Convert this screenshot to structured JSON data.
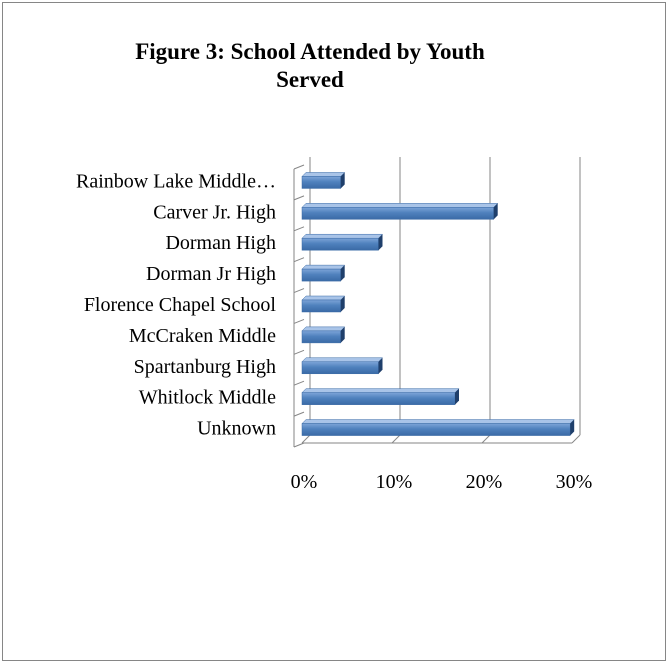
{
  "chart_data": {
    "type": "bar",
    "orientation": "horizontal",
    "style": "3d",
    "title": "Figure 3: School Attended by Youth Served",
    "categories": [
      "Rainbow Lake Middle…",
      "Carver Jr. High",
      "Dorman High",
      "Dorman Jr High",
      "Florence Chapel School",
      "McCraken Middle",
      "Spartanburg High",
      "Whitlock Middle",
      "Unknown"
    ],
    "values": [
      4.3,
      21.3,
      8.5,
      4.3,
      4.3,
      4.3,
      8.5,
      17.0,
      29.8
    ],
    "xlim": [
      0,
      30
    ],
    "xticks": [
      "0%",
      "10%",
      "20%",
      "30%"
    ],
    "grid": true,
    "legend": "none",
    "bar_color": "#4f81bd"
  }
}
